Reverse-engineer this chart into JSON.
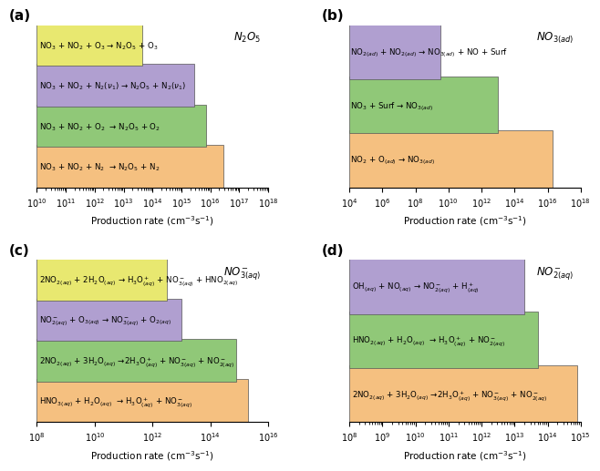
{
  "panels": [
    {
      "label": "(a)",
      "title": "N$_2$O$_5$",
      "xlim_log": [
        10,
        18
      ],
      "xlabel": "Production rate (cm$^{-3}$s$^{-1}$)",
      "bars": [
        {
          "label": "NO$_3$ + NO$_2$ + O$_3$ → N$_2$O$_5$ + O$_3$",
          "value_log": 13.65,
          "color": "#e8e870"
        },
        {
          "label": "NO$_3$ + NO$_2$ + N$_2$($\\nu_1$) → N$_2$O$_5$ + N$_2$($\\nu_1$)",
          "value_log": 15.45,
          "color": "#b09fd0"
        },
        {
          "label": "NO$_3$ + NO$_2$ + O$_2$  → N$_2$O$_5$ + O$_2$",
          "value_log": 15.85,
          "color": "#90c878"
        },
        {
          "label": "NO$_3$ + NO$_2$ + N$_2$  → N$_2$O$_5$ + N$_2$",
          "value_log": 16.45,
          "color": "#f5c080"
        }
      ]
    },
    {
      "label": "(b)",
      "title": "NO$_{3(ad)}$",
      "xlim_log": [
        4,
        18
      ],
      "xlabel": "Production rate (cm$^{-3}$s$^{-1}$)",
      "bars": [
        {
          "label": "NO$_{2(ad)}$ + NO$_{2(ad)}$ → NO$_{3(ad)}$ + NO + Surf",
          "value_log": 9.5,
          "color": "#b09fd0"
        },
        {
          "label": "NO$_3$ + Surf → NO$_{3(ad)}$",
          "value_log": 13.0,
          "color": "#90c878"
        },
        {
          "label": "NO$_2$ + O$_{(ad)}$ → NO$_{3(ad)}$",
          "value_log": 16.3,
          "color": "#f5c080"
        }
      ]
    },
    {
      "label": "(c)",
      "title": "NO$^-_{3(aq)}$",
      "xlim_log": [
        8,
        16
      ],
      "xlabel": "Production rate (cm$^{-3}$s$^{-1}$)",
      "bars": [
        {
          "label": "2NO$_{2(aq)}$ + 2H$_2$O$_{(aq)}$ → H$_3$O$^+_{(aq)}$ + NO$^-_{3(aq)}$ + HNO$_{2(aq)}$",
          "value_log": 12.5,
          "color": "#e8e870"
        },
        {
          "label": "NO$^-_{2(aq)}$ + O$_{3(aq)}$ → NO$^-_{3(aq)}$ + O$_{2(aq)}$",
          "value_log": 13.0,
          "color": "#b09fd0"
        },
        {
          "label": "2NO$_{2(aq)}$ + 3H$_2$O$_{(aq)}$ →2H$_3$O$^+_{(aq)}$ + NO$^-_{3(aq)}$ + NO$^-_{2(aq)}$",
          "value_log": 14.9,
          "color": "#90c878"
        },
        {
          "label": "HNO$_{3(aq)}$ + H$_2$O$_{(aq)}$  → H$_3$O$^+_{(aq)}$ + NO$^-_{3(aq)}$",
          "value_log": 15.3,
          "color": "#f5c080"
        }
      ]
    },
    {
      "label": "(d)",
      "title": "NO$^-_{2(aq)}$",
      "xlim_log": [
        8,
        15
      ],
      "xlabel": "Production rate (cm$^{-3}$s$^{-1}$)",
      "bars": [
        {
          "label": "OH$_{(aq)}$ + NO$_{(aq)}$ → NO$^-_{2(aq)}$ + H$^+_{(aq)}$",
          "value_log": 13.3,
          "color": "#b09fd0"
        },
        {
          "label": "HNO$_{2(aq)}$ + H$_2$O$_{(aq)}$  → H$_3$O$^+_{(aq)}$ + NO$^-_{2(aq)}$",
          "value_log": 13.7,
          "color": "#90c878"
        },
        {
          "label": "2NO$_{2(aq)}$ + 3H$_2$O$_{(aq)}$ →2H$_3$O$^+_{(aq)}$ + NO$^-_{3(aq)}$ + NO$^-_{2(aq)}$",
          "value_log": 14.9,
          "color": "#f5c080"
        }
      ]
    }
  ],
  "label_fontsize": 6.2,
  "title_fontsize": 8.5,
  "axis_fontsize": 7.5,
  "tick_fontsize": 7,
  "panel_label_fontsize": 11
}
